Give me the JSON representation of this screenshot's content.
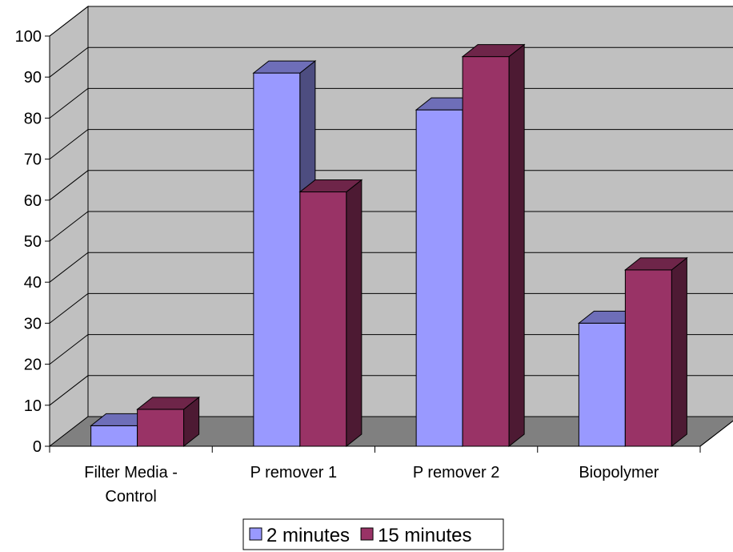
{
  "chart_data": {
    "type": "bar",
    "title": "",
    "xlabel": "",
    "ylabel": "",
    "categories": [
      [
        "Filter Media -",
        "Control"
      ],
      [
        "P remover 1"
      ],
      [
        "P remover 2"
      ],
      [
        "Biopolymer"
      ]
    ],
    "series": [
      {
        "name": "2 minutes",
        "values": [
          5,
          91,
          82,
          30
        ],
        "color": "#9999FF"
      },
      {
        "name": "15 minutes",
        "values": [
          9,
          62,
          95,
          43
        ],
        "color": "#993366"
      }
    ],
    "ylim": [
      0,
      100
    ],
    "yticks": [
      0,
      10,
      20,
      30,
      40,
      50,
      60,
      70,
      80,
      90,
      100
    ],
    "grid": true,
    "style": "3d-clustered-column",
    "legend_position": "bottom",
    "wall_color": "#C0C0C0",
    "floor_color": "#808080"
  }
}
